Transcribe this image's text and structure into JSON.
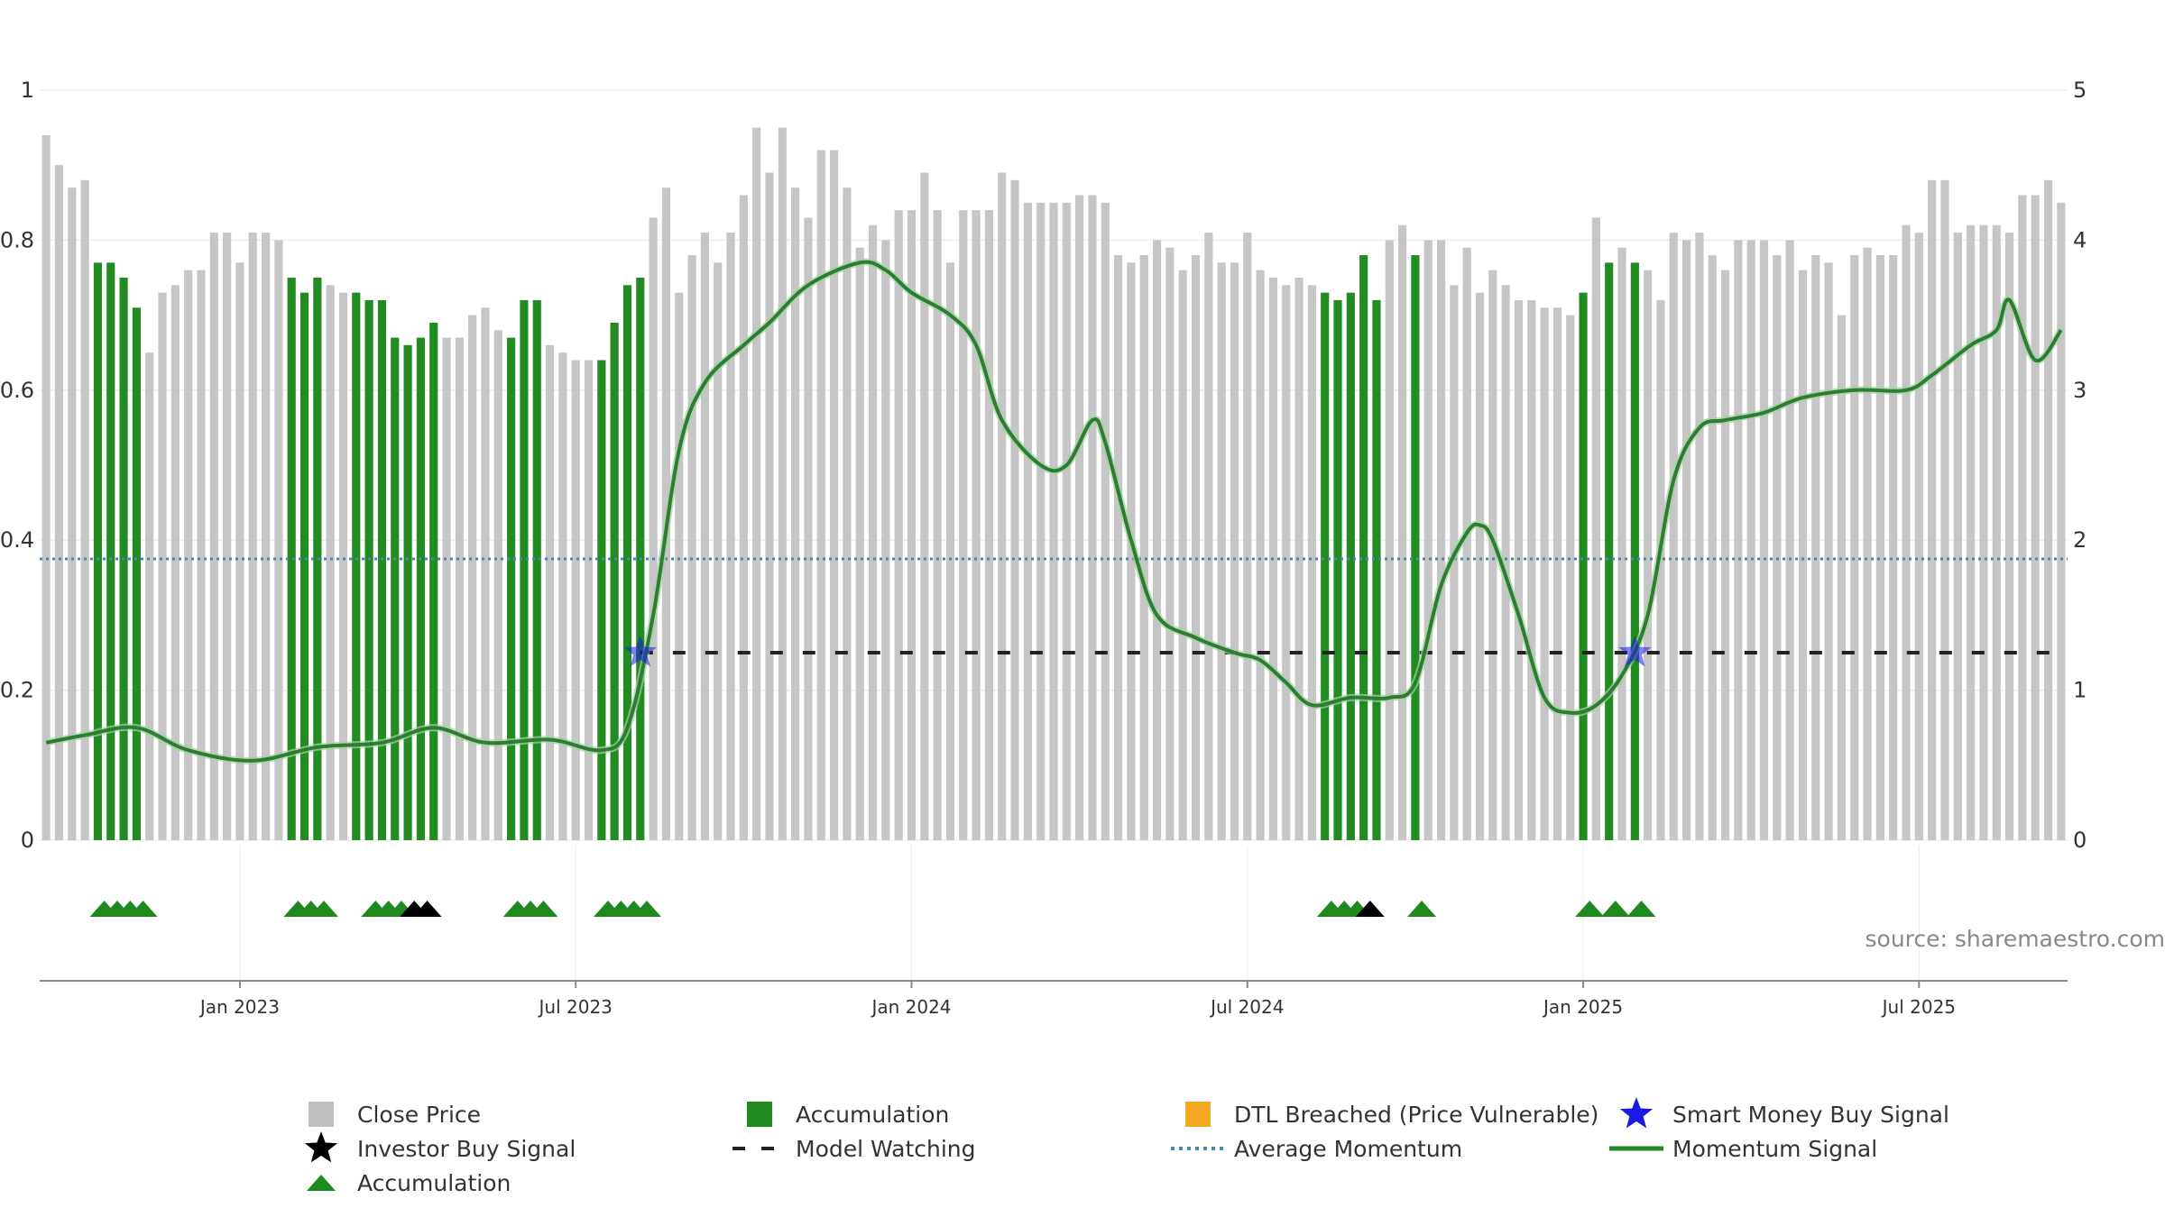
{
  "chart_data": {
    "type": "bar",
    "source_label": "source: sharemaestro.com",
    "colors": {
      "close_price": "#c0c0c0",
      "accumulation": "#228b22",
      "momentum": "#2e7d32",
      "average_momentum": "#4a86b0",
      "model_watching": "#222222",
      "investor_buy": "#000000",
      "smart_money": "#1a1ae6",
      "accum_marker": "#1e8a1e",
      "dtl": "#f5a623"
    },
    "left_axis": {
      "range": [
        0,
        1
      ],
      "ticks": [
        {
          "value": 0,
          "label": "0"
        },
        {
          "value": 0.2,
          "label": "0.2"
        },
        {
          "value": 0.4,
          "label": "0.4"
        },
        {
          "value": 0.6,
          "label": "0.6"
        },
        {
          "value": 0.8,
          "label": "0.8"
        },
        {
          "value": 1,
          "label": "1"
        }
      ]
    },
    "right_axis": {
      "range": [
        0,
        5
      ],
      "ticks": [
        {
          "value": 0,
          "label": "0"
        },
        {
          "value": 1,
          "label": "1"
        },
        {
          "value": 2,
          "label": "2"
        },
        {
          "value": 3,
          "label": "3"
        },
        {
          "value": 4,
          "label": "4"
        },
        {
          "value": 5,
          "label": "5"
        }
      ]
    },
    "bar_count": 157,
    "bars": [
      0.94,
      0.9,
      0.87,
      0.88,
      0.77,
      0.77,
      0.75,
      0.71,
      0.65,
      0.73,
      0.74,
      0.76,
      0.76,
      0.81,
      0.81,
      0.77,
      0.81,
      0.81,
      0.8,
      0.75,
      0.73,
      0.75,
      0.74,
      0.73,
      0.73,
      0.72,
      0.72,
      0.67,
      0.66,
      0.67,
      0.69,
      0.67,
      0.67,
      0.7,
      0.71,
      0.68,
      0.67,
      0.72,
      0.72,
      0.66,
      0.65,
      0.64,
      0.64,
      0.64,
      0.69,
      0.74,
      0.75,
      0.83,
      0.87,
      0.73,
      0.78,
      0.81,
      0.77,
      0.81,
      0.86,
      0.95,
      0.89,
      0.95,
      0.87,
      0.83,
      0.92,
      0.92,
      0.87,
      0.79,
      0.82,
      0.8,
      0.84,
      0.84,
      0.89,
      0.84,
      0.77,
      0.84,
      0.84,
      0.84,
      0.89,
      0.88,
      0.85,
      0.85,
      0.85,
      0.85,
      0.86,
      0.86,
      0.85,
      0.78,
      0.77,
      0.78,
      0.8,
      0.79,
      0.76,
      0.78,
      0.81,
      0.77,
      0.77,
      0.81,
      0.76,
      0.75,
      0.74,
      0.75,
      0.74,
      0.73,
      0.72,
      0.73,
      0.78,
      0.72,
      0.8,
      0.82,
      0.78,
      0.8,
      0.8,
      0.74,
      0.79,
      0.73,
      0.76,
      0.74,
      0.72,
      0.72,
      0.71,
      0.71,
      0.7,
      0.73,
      0.83,
      0.77,
      0.79,
      0.77,
      0.76,
      0.72,
      0.81,
      0.8,
      0.81,
      0.78,
      0.76,
      0.8,
      0.8,
      0.8,
      0.78,
      0.8,
      0.76,
      0.78,
      0.77,
      0.7,
      0.78,
      0.79,
      0.78,
      0.78,
      0.82,
      0.81,
      0.88,
      0.88,
      0.81,
      0.82,
      0.82,
      0.82,
      0.81,
      0.86,
      0.86,
      0.88,
      0.85
    ],
    "accumulation_bar_indices": [
      4,
      5,
      6,
      7,
      19,
      20,
      21,
      24,
      25,
      26,
      27,
      28,
      29,
      30,
      36,
      37,
      38,
      43,
      44,
      45,
      46,
      99,
      100,
      101,
      102,
      103,
      106,
      119,
      121,
      123
    ],
    "momentum_signal": [
      [
        0,
        0.65
      ],
      [
        3,
        0.7
      ],
      [
        7,
        0.75
      ],
      [
        11,
        0.6
      ],
      [
        16,
        0.53
      ],
      [
        21,
        0.62
      ],
      [
        26,
        0.65
      ],
      [
        30,
        0.75
      ],
      [
        34,
        0.65
      ],
      [
        39,
        0.67
      ],
      [
        43,
        0.6
      ],
      [
        45,
        0.75
      ],
      [
        47,
        1.5
      ],
      [
        49,
        2.6
      ],
      [
        51,
        3.05
      ],
      [
        54,
        3.3
      ],
      [
        56,
        3.45
      ],
      [
        59,
        3.7
      ],
      [
        63,
        3.85
      ],
      [
        65,
        3.8
      ],
      [
        67,
        3.65
      ],
      [
        70,
        3.5
      ],
      [
        72,
        3.3
      ],
      [
        74,
        2.8
      ],
      [
        77,
        2.5
      ],
      [
        79,
        2.5
      ],
      [
        81,
        2.8
      ],
      [
        82,
        2.65
      ],
      [
        84,
        2.0
      ],
      [
        86,
        1.5
      ],
      [
        89,
        1.35
      ],
      [
        92,
        1.25
      ],
      [
        94,
        1.2
      ],
      [
        96,
        1.05
      ],
      [
        98,
        0.9
      ],
      [
        101,
        0.95
      ],
      [
        104,
        0.95
      ],
      [
        106,
        1.05
      ],
      [
        108,
        1.7
      ],
      [
        110,
        2.05
      ],
      [
        111,
        2.1
      ],
      [
        112,
        2.0
      ],
      [
        114,
        1.5
      ],
      [
        116,
        0.95
      ],
      [
        118,
        0.85
      ],
      [
        120,
        0.9
      ],
      [
        122,
        1.1
      ],
      [
        124,
        1.5
      ],
      [
        126,
        2.4
      ],
      [
        128,
        2.75
      ],
      [
        130,
        2.8
      ],
      [
        133,
        2.85
      ],
      [
        136,
        2.95
      ],
      [
        140,
        3.0
      ],
      [
        144,
        3.0
      ],
      [
        146,
        3.1
      ],
      [
        149,
        3.3
      ],
      [
        151,
        3.4
      ],
      [
        152,
        3.6
      ],
      [
        154,
        3.2
      ],
      [
        156,
        3.4
      ]
    ],
    "momentum_axis": "right",
    "average_momentum": 1.875,
    "model_watching": {
      "value": 1.25,
      "start": 46,
      "end": 156
    },
    "smart_money_buy_signals": [
      {
        "index": 46,
        "value": 1.25
      },
      {
        "index": 123,
        "value": 1.25
      }
    ],
    "signal_markers": [
      {
        "index": 4.5,
        "type": "accumulation"
      },
      {
        "index": 5.5,
        "type": "accumulation"
      },
      {
        "index": 6.5,
        "type": "accumulation"
      },
      {
        "index": 7.5,
        "type": "accumulation"
      },
      {
        "index": 19.5,
        "type": "accumulation"
      },
      {
        "index": 20.5,
        "type": "accumulation"
      },
      {
        "index": 21.5,
        "type": "accumulation"
      },
      {
        "index": 25.5,
        "type": "accumulation"
      },
      {
        "index": 26.5,
        "type": "accumulation"
      },
      {
        "index": 27.5,
        "type": "accumulation"
      },
      {
        "index": 28.5,
        "type": "investor_buy"
      },
      {
        "index": 29.5,
        "type": "investor_buy"
      },
      {
        "index": 36.5,
        "type": "accumulation"
      },
      {
        "index": 37.5,
        "type": "accumulation"
      },
      {
        "index": 38.5,
        "type": "accumulation"
      },
      {
        "index": 43.5,
        "type": "accumulation"
      },
      {
        "index": 44.5,
        "type": "accumulation"
      },
      {
        "index": 45.5,
        "type": "accumulation"
      },
      {
        "index": 46.5,
        "type": "accumulation"
      },
      {
        "index": 99.5,
        "type": "accumulation"
      },
      {
        "index": 100.5,
        "type": "accumulation"
      },
      {
        "index": 101.5,
        "type": "accumulation"
      },
      {
        "index": 102.5,
        "type": "investor_buy"
      },
      {
        "index": 106.5,
        "type": "accumulation"
      },
      {
        "index": 119.5,
        "type": "accumulation"
      },
      {
        "index": 121.5,
        "type": "accumulation"
      },
      {
        "index": 123.5,
        "type": "accumulation"
      }
    ],
    "x_ticks": [
      {
        "index": 15,
        "label": "Jan 2023"
      },
      {
        "index": 41,
        "label": "Jul 2023"
      },
      {
        "index": 67,
        "label": "Jan 2024"
      },
      {
        "index": 93,
        "label": "Jul 2024"
      },
      {
        "index": 119,
        "label": "Jan 2025"
      },
      {
        "index": 145,
        "label": "Jul 2025"
      }
    ],
    "legend": [
      {
        "symbol": "close_price",
        "label": "Close Price"
      },
      {
        "symbol": "accumulation_bar",
        "label": "Accumulation"
      },
      {
        "symbol": "dtl",
        "label": "DTL Breached (Price Vulnerable)"
      },
      {
        "symbol": "smart_money",
        "label": "Smart Money Buy Signal"
      },
      {
        "symbol": "investor_buy",
        "label": "Investor Buy Signal"
      },
      {
        "symbol": "model_watching",
        "label": "Model Watching"
      },
      {
        "symbol": "average_momentum",
        "label": "Average Momentum"
      },
      {
        "symbol": "momentum",
        "label": "Momentum Signal"
      },
      {
        "symbol": "accum_marker",
        "label": "Accumulation"
      }
    ]
  }
}
